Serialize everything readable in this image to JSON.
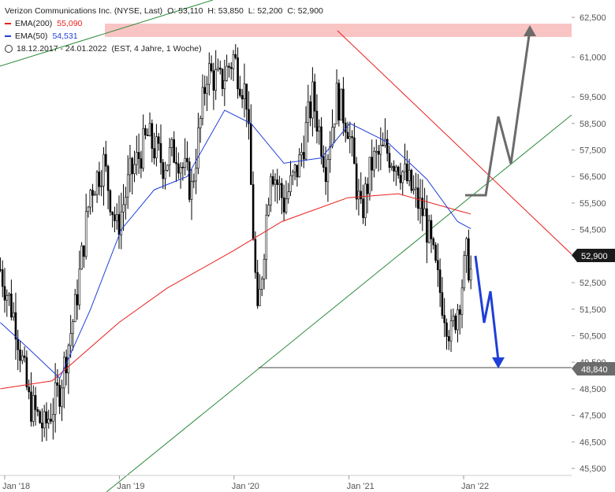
{
  "legend": {
    "instrument": "Verizon Communications Inc. (NYSE, Last)",
    "ohlc": "O: 53,110  H: 53,850  L: 52,200  C: 52,900",
    "ema200_label": "EMA(200)",
    "ema200_value": "55,090",
    "ema50_label": "EMA(50)",
    "ema50_value": "54,531",
    "range": "18.12.2017 - 24.01.2022",
    "range_note": "(EST, 4 Jahre, 1 Woche)",
    "colors": {
      "ema200": "#e8201e",
      "ema50": "#1f3fd8",
      "price": "#000000"
    },
    "icon": "clock-icon"
  },
  "chart_data": {
    "type": "candlestick",
    "title": "Verizon Communications Inc. (NYSE, Last)",
    "y_ticks": [
      "62,500",
      "61,000",
      "59,500",
      "58,500",
      "57,500",
      "56,500",
      "55,500",
      "54,500",
      "53,500",
      "52,500",
      "51,500",
      "50,500",
      "49,500",
      "48,500",
      "47,500",
      "46,500",
      "45,500"
    ],
    "y_tick_values": [
      62.5,
      61.0,
      59.5,
      58.5,
      57.5,
      56.5,
      55.5,
      54.5,
      53.5,
      52.5,
      51.5,
      50.5,
      49.5,
      48.5,
      47.5,
      46.5,
      45.5
    ],
    "x_ticks": [
      "Jan '18",
      "Jan '19",
      "Jan '20",
      "Jan '21",
      "Jan '22"
    ],
    "x_tick_dates": [
      "2018-01-01",
      "2019-01-01",
      "2020-01-01",
      "2021-01-01",
      "2022-01-01"
    ],
    "price": [
      [
        "2017-12-18",
        53.0
      ],
      [
        "2018-02-05",
        51.0
      ],
      [
        "2018-03-19",
        48.0
      ],
      [
        "2018-05-07",
        47.0
      ],
      [
        "2018-06-25",
        48.5
      ],
      [
        "2018-08-13",
        51.5
      ],
      [
        "2018-10-01",
        56.0
      ],
      [
        "2018-11-12",
        57.0
      ],
      [
        "2018-12-24",
        54.5
      ],
      [
        "2019-02-04",
        56.5
      ],
      [
        "2019-04-01",
        58.0
      ],
      [
        "2019-05-20",
        57.0
      ],
      [
        "2019-07-01",
        57.5
      ],
      [
        "2019-08-19",
        56.0
      ],
      [
        "2019-10-07",
        60.5
      ],
      [
        "2019-11-18",
        60.0
      ],
      [
        "2019-12-30",
        61.0
      ],
      [
        "2020-02-10",
        59.5
      ],
      [
        "2020-03-16",
        51.0
      ],
      [
        "2020-04-27",
        57.0
      ],
      [
        "2020-06-08",
        55.5
      ],
      [
        "2020-07-27",
        57.0
      ],
      [
        "2020-09-07",
        59.5
      ],
      [
        "2020-10-19",
        57.0
      ],
      [
        "2020-11-23",
        59.5
      ],
      [
        "2020-12-28",
        58.5
      ],
      [
        "2021-02-08",
        55.0
      ],
      [
        "2021-03-15",
        57.0
      ],
      [
        "2021-04-26",
        57.5
      ],
      [
        "2021-06-07",
        57.0
      ],
      [
        "2021-07-19",
        56.0
      ],
      [
        "2021-08-30",
        55.0
      ],
      [
        "2021-10-11",
        52.5
      ],
      [
        "2021-11-22",
        50.5
      ],
      [
        "2021-12-20",
        52.0
      ],
      [
        "2022-01-10",
        53.5
      ],
      [
        "2022-01-24",
        52.9
      ]
    ],
    "ema200": [
      [
        "2017-12-18",
        48.5
      ],
      [
        "2018-06-01",
        48.8
      ],
      [
        "2018-12-31",
        51.0
      ],
      [
        "2019-06-03",
        52.3
      ],
      [
        "2019-12-30",
        53.7
      ],
      [
        "2020-06-01",
        54.8
      ],
      [
        "2020-12-28",
        55.7
      ],
      [
        "2021-06-07",
        55.85
      ],
      [
        "2021-12-20",
        55.2
      ],
      [
        "2022-01-24",
        55.09
      ]
    ],
    "ema50": [
      [
        "2017-12-18",
        51.0
      ],
      [
        "2018-03-19",
        50.0
      ],
      [
        "2018-06-25",
        48.9
      ],
      [
        "2018-10-01",
        51.5
      ],
      [
        "2019-01-07",
        54.5
      ],
      [
        "2019-04-22",
        56.0
      ],
      [
        "2019-08-05",
        56.5
      ],
      [
        "2019-12-02",
        59.0
      ],
      [
        "2020-02-24",
        58.5
      ],
      [
        "2020-06-08",
        57.0
      ],
      [
        "2020-10-05",
        57.2
      ],
      [
        "2021-01-04",
        58.5
      ],
      [
        "2021-05-03",
        57.8
      ],
      [
        "2021-09-06",
        56.4
      ],
      [
        "2021-12-13",
        54.8
      ],
      [
        "2022-01-24",
        54.53
      ]
    ],
    "annotations": {
      "resistance_zone": {
        "from": 61.8,
        "to": 62.5
      },
      "support_level": 48.84,
      "support_label": "48,840",
      "last_price_label": "52,900",
      "last_price": 52.9
    }
  }
}
